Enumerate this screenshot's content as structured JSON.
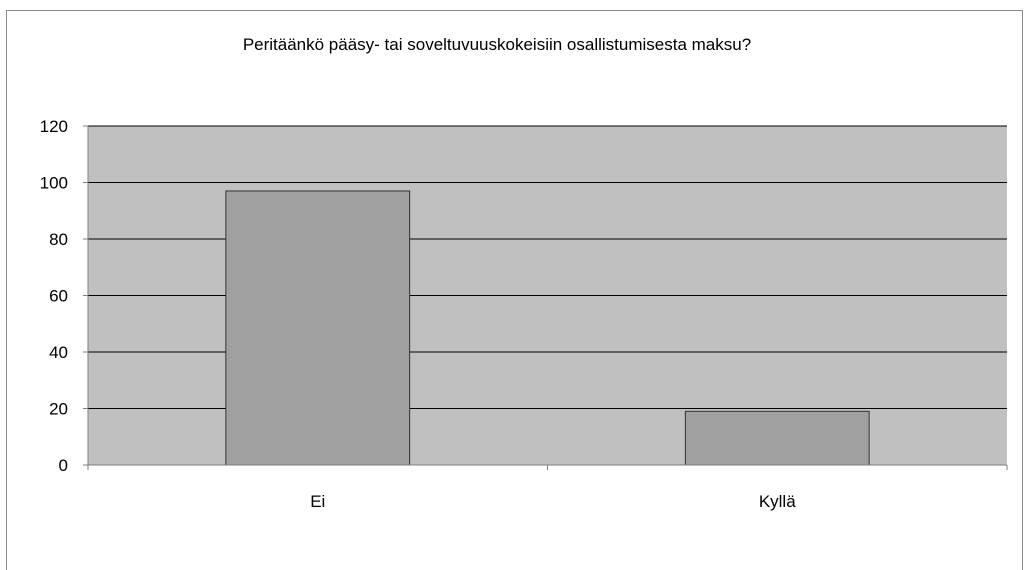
{
  "chart_data": {
    "type": "bar",
    "title": "Peritäänkö pääsy- tai soveltuvuuskokeisiin osallistumisesta maksu?",
    "categories": [
      "Ei",
      "Kyllä"
    ],
    "values": [
      97,
      19
    ],
    "xlabel": "",
    "ylabel": "",
    "ylim": [
      0,
      120
    ],
    "yticks": [
      0,
      20,
      40,
      60,
      80,
      100,
      120
    ],
    "grid": true,
    "legend": "none",
    "colors": {
      "plot_background": "#c0c0c0",
      "bar_fill": "#a0a0a0",
      "bar_stroke": "#333333",
      "gridline": "#000000",
      "axis": "#7f7f7f"
    }
  }
}
